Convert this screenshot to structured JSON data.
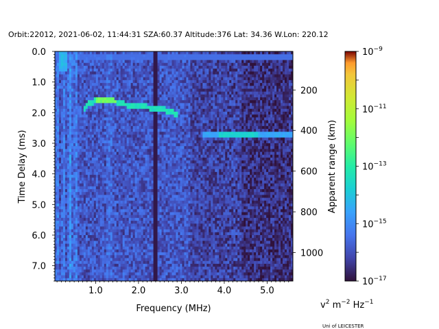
{
  "chart_data": {
    "type": "heatmap",
    "title": "Orbit:22012, 2021-06-02, 11:44:31 SZA:60.37 Altitude:376 Lat: 34.36 W.Lon: 220.12",
    "xlabel": "Frequency (MHz)",
    "ylabel": "Time Delay (ms)",
    "y2label": "Apparent range (km)",
    "colorbar_label": "v² m⁻² Hz⁻¹",
    "colorbar_label_parts": {
      "base1": "v",
      "exp1": "2",
      "mid": " m",
      "exp2": "−2",
      "end": " Hz",
      "exp3": "−1"
    },
    "credit": "Uni of LEICESTER",
    "xlim": [
      0.05,
      5.6
    ],
    "ylim": [
      7.5,
      0.0
    ],
    "x_ticks": [
      "1.0",
      "2.0",
      "3.0",
      "4.0",
      "5.0"
    ],
    "x_tick_values": [
      1.0,
      2.0,
      3.0,
      4.0,
      5.0
    ],
    "y_ticks": [
      "0.0",
      "1.0",
      "2.0",
      "3.0",
      "4.0",
      "5.0",
      "6.0",
      "7.0"
    ],
    "y_tick_values": [
      0.0,
      1.0,
      2.0,
      3.0,
      4.0,
      5.0,
      6.0,
      7.0
    ],
    "y2_ticks": [
      "200",
      "400",
      "600",
      "800",
      "1000"
    ],
    "y2_tick_delays_ms": [
      1.26,
      2.58,
      3.91,
      5.24,
      6.57
    ],
    "colorbar": {
      "scale": "log",
      "range": [
        1e-17,
        1e-09
      ],
      "ticks": [
        {
          "base": "10",
          "exp": "−9",
          "log": -9
        },
        {
          "base": "10",
          "exp": "−11",
          "log": -11
        },
        {
          "base": "10",
          "exp": "−13",
          "log": -13
        },
        {
          "base": "10",
          "exp": "−15",
          "log": -15
        },
        {
          "base": "10",
          "exp": "−17",
          "log": -17
        }
      ],
      "colormap": "turbo"
    },
    "features": [
      {
        "name": "surface reflection (oblique echo)",
        "freq_range_mhz": [
          0.7,
          2.95
        ],
        "delay_ms_points": [
          [
            0.7,
            1.95
          ],
          [
            0.8,
            1.75
          ],
          [
            1.0,
            1.62
          ],
          [
            1.25,
            1.58
          ],
          [
            1.5,
            1.65
          ],
          [
            1.8,
            1.78
          ],
          [
            2.2,
            1.82
          ],
          [
            2.6,
            1.9
          ],
          [
            2.9,
            2.05
          ]
        ],
        "peak_log": -12.5
      },
      {
        "name": "ionospheric echo trace",
        "freq_range_mhz": [
          3.5,
          5.6
        ],
        "delay_ms": 2.72,
        "peak_log": -14.0
      },
      {
        "name": "local plasma oscillation echo",
        "freq_mhz": [
          0.15,
          0.35
        ],
        "delay_ms": [
          0.2,
          0.65
        ],
        "peak_log": -14.0
      },
      {
        "name": "interference line",
        "freq_mhz": 2.4,
        "delay_ms": [
          0.0,
          7.5
        ],
        "peak_log": -16.8
      },
      {
        "name": "top stripe",
        "freq_range_mhz": [
          0.05,
          5.6
        ],
        "delay_ms": 0.2,
        "peak_log": -15.5
      }
    ]
  }
}
